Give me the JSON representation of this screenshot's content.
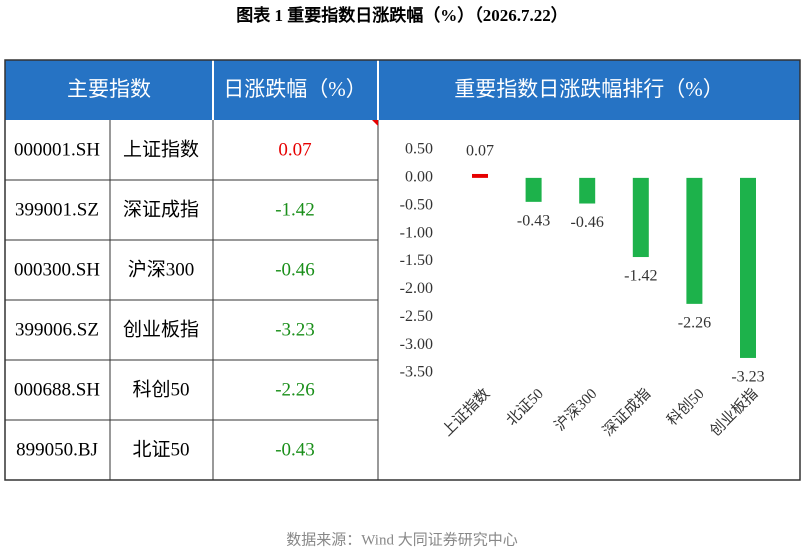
{
  "title": "图表 1  重要指数日涨跌幅（%）（2026.7.22）",
  "table": {
    "headers": [
      "主要指数",
      "日涨跌幅（%）"
    ],
    "rows": [
      [
        "000001.SH",
        "上证指数",
        "0.07"
      ],
      [
        "399001.SZ",
        "深证成指",
        "-1.42"
      ],
      [
        "000300.SH",
        "沪深300",
        "-0.46"
      ],
      [
        "399006.SZ",
        "创业板指",
        "-3.23"
      ],
      [
        "000688.SH",
        "科创50",
        "-2.26"
      ],
      [
        "899050.BJ",
        "北证50",
        "-0.43"
      ]
    ]
  },
  "chart_data": {
    "type": "bar",
    "title": "重要指数日涨跌幅排行（%）",
    "categories": [
      "上证指数",
      "北证50",
      "沪深300",
      "深证成指",
      "科创50",
      "创业板指"
    ],
    "values": [
      0.07,
      -0.43,
      -0.46,
      -1.42,
      -2.26,
      -3.23
    ],
    "colors": [
      "#e60000",
      "#1db24b",
      "#1db24b",
      "#1db24b",
      "#1db24b",
      "#1db24b"
    ],
    "ylim": [
      -3.5,
      0.5
    ],
    "yticks": [
      {
        "value": 0.5,
        "label": "0.50"
      },
      {
        "value": 0,
        "label": "0.00"
      },
      {
        "value": -0.5,
        "label": "-0.50"
      },
      {
        "value": -1,
        "label": "-1.00"
      },
      {
        "value": -1.5,
        "label": "-1.50"
      },
      {
        "value": -2,
        "label": "-2.00"
      },
      {
        "value": -2.5,
        "label": "-2.50"
      },
      {
        "value": -3,
        "label": "-3.00"
      },
      {
        "value": -3.5,
        "label": "-3.50"
      }
    ],
    "grid": false
  },
  "source": "数据来源：Wind 大同证券研究中心"
}
